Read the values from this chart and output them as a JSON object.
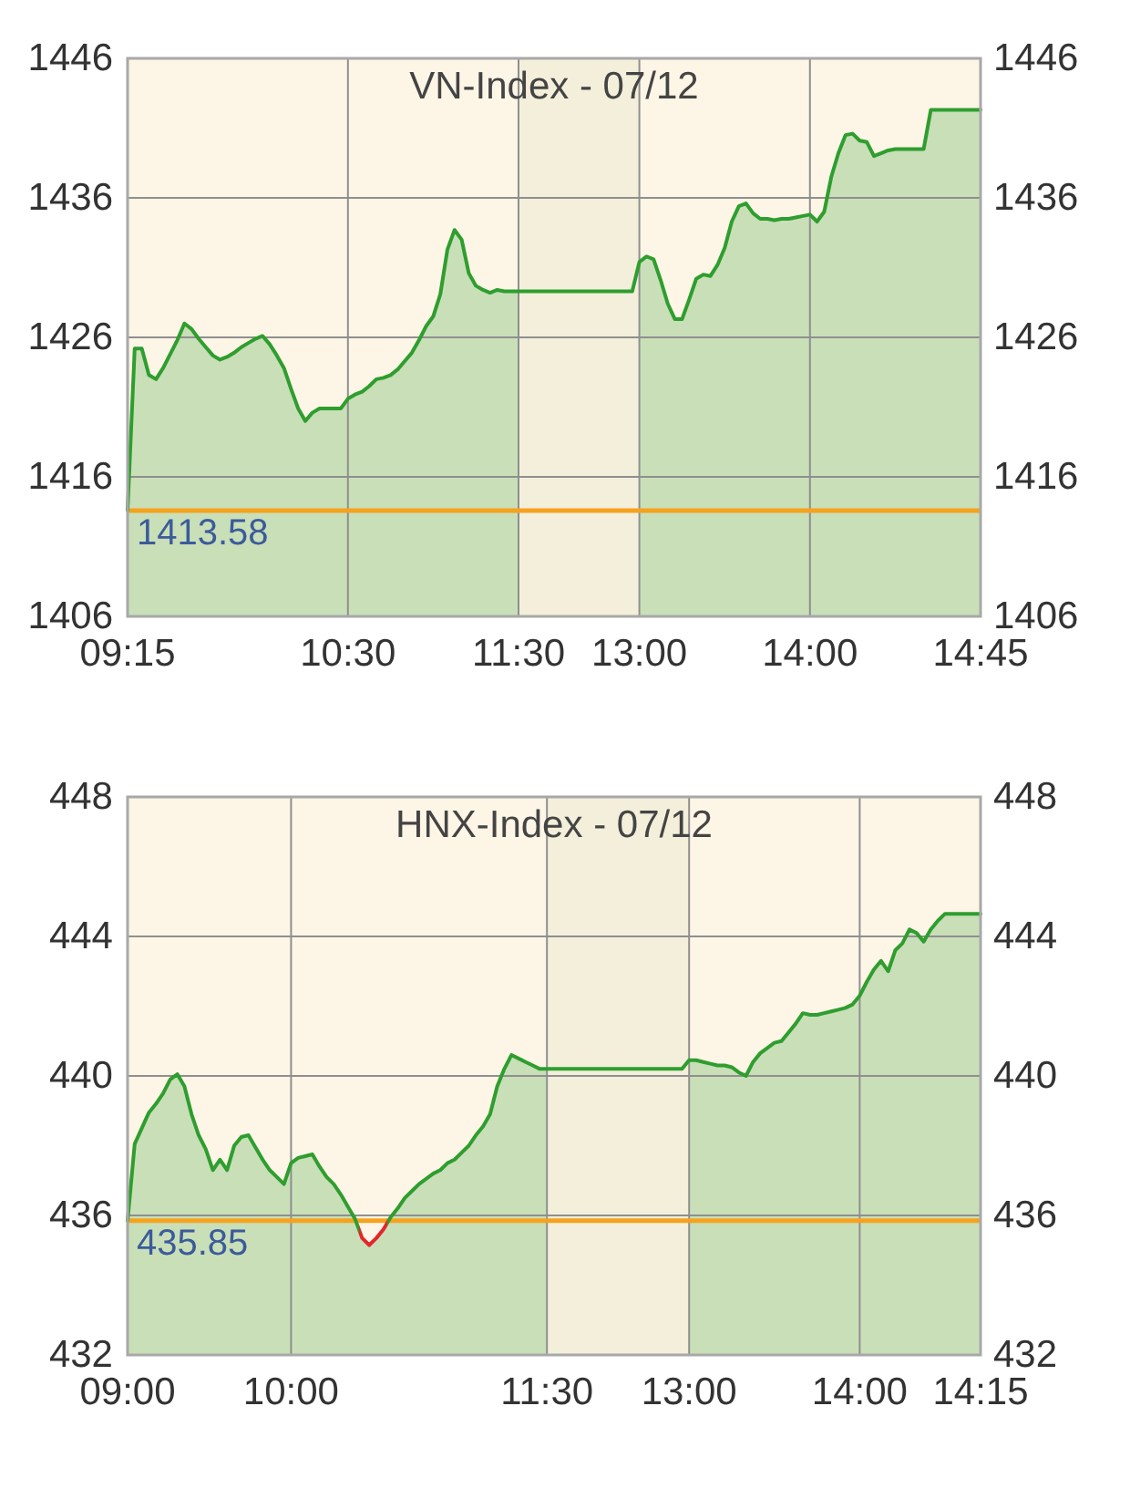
{
  "chart_data": [
    {
      "type": "area",
      "title": "VN-Index - 07/12",
      "categories": [
        "09:15",
        null,
        null,
        null,
        null,
        null,
        null,
        null,
        null,
        null,
        null,
        null,
        null,
        null,
        null,
        null,
        null,
        null,
        null,
        null,
        null,
        null,
        null,
        null,
        null,
        null,
        null,
        null,
        null,
        null,
        null,
        "10:30",
        null,
        null,
        null,
        null,
        null,
        null,
        null,
        null,
        null,
        null,
        null,
        null,
        null,
        null,
        null,
        null,
        null,
        null,
        null,
        null,
        null,
        null,
        null,
        "11:30",
        null,
        null,
        null,
        null,
        null,
        null,
        null,
        null,
        null,
        null,
        null,
        null,
        null,
        null,
        null,
        null,
        "13:00",
        null,
        null,
        null,
        null,
        null,
        null,
        null,
        null,
        null,
        null,
        null,
        null,
        null,
        null,
        null,
        null,
        null,
        null,
        null,
        null,
        null,
        null,
        null,
        "14:00",
        null,
        null,
        null,
        null,
        null,
        null,
        null,
        null,
        null,
        null,
        null,
        null,
        null,
        null,
        null,
        null,
        null,
        null,
        null,
        null,
        null,
        null,
        null,
        "14:45"
      ],
      "series": [
        {
          "color": "#2e9e2e",
          "values": [
            1413.6,
            1425.2,
            1425.2,
            1423.3,
            1423.0,
            1423.8,
            1424.8,
            1425.8,
            1427.0,
            1426.6,
            1425.9,
            1425.3,
            1424.7,
            1424.4,
            1424.6,
            1424.9,
            1425.3,
            1425.6,
            1425.9,
            1426.1,
            1425.5,
            1424.7,
            1423.8,
            1422.3,
            1420.9,
            1420.0,
            1420.6,
            1420.9,
            1420.9,
            1420.9,
            1420.9,
            1421.6,
            1421.9,
            1422.1,
            1422.5,
            1423.0,
            1423.1,
            1423.3,
            1423.7,
            1424.3,
            1424.9,
            1425.8,
            1426.8,
            1427.5,
            1429.1,
            1432.3,
            1433.7,
            1433.0,
            1430.6,
            1429.7,
            1429.4,
            1429.2,
            1429.4,
            1429.3,
            1429.3,
            1429.3,
            1429.3,
            1429.3,
            1429.3,
            1429.3,
            1429.3,
            1429.3,
            1429.3,
            1429.3,
            1429.3,
            1429.3,
            1429.3,
            1429.3,
            1429.3,
            1429.3,
            1429.3,
            1429.3,
            1431.4,
            1431.8,
            1431.6,
            1430.1,
            1428.4,
            1427.3,
            1427.3,
            1428.7,
            1430.2,
            1430.5,
            1430.4,
            1431.2,
            1432.4,
            1434.3,
            1435.4,
            1435.6,
            1434.9,
            1434.5,
            1434.5,
            1434.4,
            1434.5,
            1434.5,
            1434.6,
            1434.7,
            1434.8,
            1434.3,
            1435.0,
            1437.5,
            1439.2,
            1440.5,
            1440.6,
            1440.1,
            1440.0,
            1439.0,
            1439.2,
            1439.4,
            1439.5,
            1439.5,
            1439.5,
            1439.5,
            1439.5,
            1442.3,
            1442.3,
            1442.3,
            1442.3,
            1442.3,
            1442.3,
            1442.3,
            1442.3
          ]
        }
      ],
      "ylim": [
        1406,
        1446
      ],
      "yticks": [
        1406,
        1416,
        1426,
        1436,
        1446
      ],
      "y2lim": [
        1406,
        1446
      ],
      "y2ticks": [
        1406,
        1416,
        1426,
        1436,
        1446
      ],
      "grid": true,
      "bands": [
        {
          "axis": "x",
          "from": "11:30",
          "to": "13:00",
          "color": "#f3efdb"
        }
      ],
      "ref_lines": [
        {
          "axis": "y",
          "value": 1413.58,
          "label": "1413.58",
          "color": "#f5a21e"
        }
      ]
    },
    {
      "type": "area",
      "title": "HNX-Index - 07/12",
      "categories": [
        "09:00",
        null,
        null,
        null,
        null,
        null,
        null,
        null,
        null,
        null,
        null,
        null,
        null,
        null,
        null,
        null,
        null,
        null,
        null,
        null,
        null,
        null,
        null,
        "10:00",
        null,
        null,
        null,
        null,
        null,
        null,
        null,
        null,
        null,
        null,
        null,
        null,
        null,
        null,
        null,
        null,
        null,
        null,
        null,
        null,
        null,
        null,
        null,
        null,
        null,
        null,
        null,
        null,
        null,
        null,
        null,
        null,
        null,
        null,
        null,
        "11:30",
        null,
        null,
        null,
        null,
        null,
        null,
        null,
        null,
        null,
        null,
        null,
        null,
        null,
        null,
        null,
        null,
        null,
        null,
        null,
        "13:00",
        null,
        null,
        null,
        null,
        null,
        null,
        null,
        null,
        null,
        null,
        null,
        null,
        null,
        null,
        null,
        null,
        null,
        null,
        null,
        null,
        null,
        null,
        null,
        "14:00",
        null,
        null,
        null,
        null,
        null,
        null,
        null,
        null,
        null,
        null,
        null,
        null,
        null,
        null,
        null,
        null,
        "14:15"
      ],
      "series": [
        {
          "color": "#2e9e2e",
          "values": [
            435.85,
            438.05,
            438.5,
            438.95,
            439.2,
            439.5,
            439.9,
            440.05,
            439.7,
            438.9,
            438.3,
            437.9,
            437.3,
            437.6,
            437.3,
            438.0,
            438.25,
            438.3,
            437.95,
            437.6,
            437.3,
            437.1,
            436.9,
            437.5,
            437.65,
            437.7,
            437.75,
            437.4,
            437.1,
            436.9,
            436.6,
            436.25,
            435.9,
            435.35,
            435.15,
            435.35,
            435.6,
            435.95,
            436.2,
            436.5,
            436.7,
            436.9,
            437.05,
            437.2,
            437.3,
            437.5,
            437.6,
            437.8,
            438.0,
            438.3,
            438.55,
            438.9,
            439.7,
            440.2,
            440.6,
            440.5,
            440.4,
            440.3,
            440.2,
            440.2,
            440.2,
            440.2,
            440.2,
            440.2,
            440.2,
            440.2,
            440.2,
            440.2,
            440.2,
            440.2,
            440.2,
            440.2,
            440.2,
            440.2,
            440.2,
            440.2,
            440.2,
            440.2,
            440.2,
            440.45,
            440.45,
            440.4,
            440.35,
            440.3,
            440.3,
            440.25,
            440.1,
            440.0,
            440.4,
            440.65,
            440.8,
            440.95,
            441.0,
            441.25,
            441.5,
            441.8,
            441.75,
            441.75,
            441.8,
            441.85,
            441.9,
            441.95,
            442.05,
            442.3,
            442.7,
            443.05,
            443.3,
            443.0,
            443.6,
            443.8,
            444.2,
            444.1,
            443.85,
            444.2,
            444.45,
            444.65,
            444.65,
            444.65,
            444.65,
            444.65,
            444.65
          ],
          "colors": [
            "#2e9e2e",
            "#2e9e2e",
            "#2e9e2e",
            "#2e9e2e",
            "#2e9e2e",
            "#2e9e2e",
            "#2e9e2e",
            "#2e9e2e",
            "#2e9e2e",
            "#2e9e2e",
            "#2e9e2e",
            "#2e9e2e",
            "#2e9e2e",
            "#2e9e2e",
            "#2e9e2e",
            "#2e9e2e",
            "#2e9e2e",
            "#2e9e2e",
            "#2e9e2e",
            "#2e9e2e",
            "#2e9e2e",
            "#2e9e2e",
            "#2e9e2e",
            "#2e9e2e",
            "#2e9e2e",
            "#2e9e2e",
            "#2e9e2e",
            "#2e9e2e",
            "#2e9e2e",
            "#2e9e2e",
            "#2e9e2e",
            "#2e9e2e",
            "#2e9e2e",
            "#e3262b",
            "#e3262b",
            "#e3262b",
            "#e3262b",
            "#2e9e2e",
            "#2e9e2e",
            "#2e9e2e",
            "#2e9e2e",
            "#2e9e2e",
            "#2e9e2e",
            "#2e9e2e",
            "#2e9e2e",
            "#2e9e2e",
            "#2e9e2e",
            "#2e9e2e",
            "#2e9e2e",
            "#2e9e2e",
            "#2e9e2e",
            "#2e9e2e",
            "#2e9e2e",
            "#2e9e2e",
            "#2e9e2e",
            "#2e9e2e",
            "#2e9e2e",
            "#2e9e2e",
            "#2e9e2e",
            "#2e9e2e",
            "#2e9e2e",
            "#2e9e2e",
            "#2e9e2e",
            "#2e9e2e",
            "#2e9e2e",
            "#2e9e2e",
            "#2e9e2e",
            "#2e9e2e",
            "#2e9e2e",
            "#2e9e2e",
            "#2e9e2e",
            "#2e9e2e",
            "#2e9e2e",
            "#2e9e2e",
            "#2e9e2e",
            "#2e9e2e",
            "#2e9e2e",
            "#2e9e2e",
            "#2e9e2e",
            "#2e9e2e",
            "#2e9e2e",
            "#2e9e2e",
            "#2e9e2e",
            "#2e9e2e",
            "#2e9e2e",
            "#2e9e2e",
            "#2e9e2e",
            "#2e9e2e",
            "#2e9e2e",
            "#2e9e2e",
            "#2e9e2e",
            "#2e9e2e",
            "#2e9e2e",
            "#2e9e2e",
            "#2e9e2e",
            "#2e9e2e",
            "#2e9e2e",
            "#2e9e2e",
            "#2e9e2e",
            "#2e9e2e",
            "#2e9e2e",
            "#2e9e2e",
            "#2e9e2e",
            "#2e9e2e",
            "#2e9e2e",
            "#2e9e2e",
            "#2e9e2e",
            "#2e9e2e",
            "#2e9e2e",
            "#2e9e2e",
            "#2e9e2e",
            "#2e9e2e",
            "#2e9e2e",
            "#2e9e2e",
            "#2e9e2e",
            "#2e9e2e",
            "#2e9e2e",
            "#2e9e2e",
            "#2e9e2e",
            "#2e9e2e",
            "#2e9e2e"
          ]
        }
      ],
      "ylim": [
        432,
        448
      ],
      "yticks": [
        432,
        436,
        440,
        444,
        448
      ],
      "y2lim": [
        432,
        448
      ],
      "y2ticks": [
        432,
        436,
        440,
        444,
        448
      ],
      "grid": true,
      "bands": [
        {
          "axis": "x",
          "from": "11:30",
          "to": "13:00",
          "color": "#f3efdb"
        }
      ],
      "ref_lines": [
        {
          "axis": "y",
          "value": 435.85,
          "label": "435.85",
          "color": "#f5a21e"
        }
      ]
    }
  ]
}
